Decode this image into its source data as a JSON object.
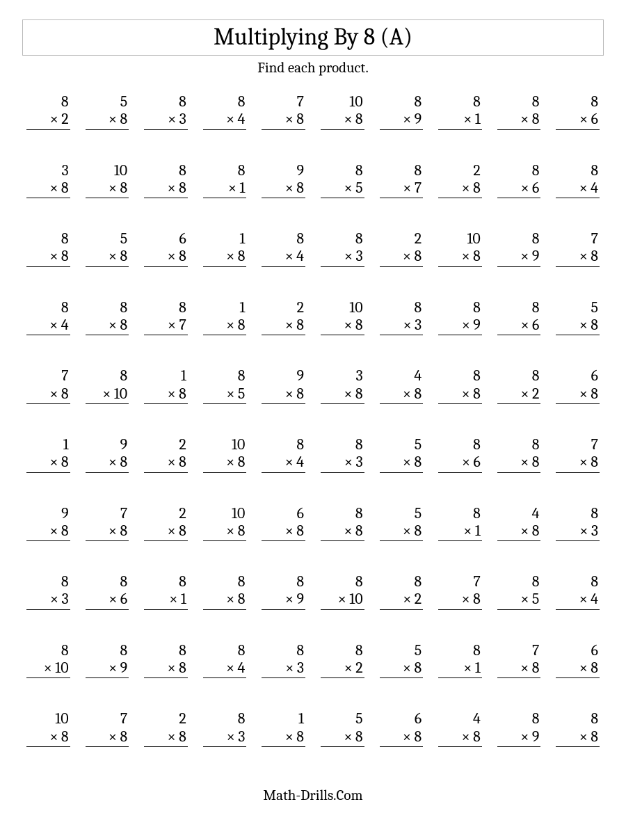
{
  "title": "Multiplying By 8 (A)",
  "subtitle": "Find each product.",
  "footer": "Math-Drills.Com",
  "op_symbol": "×",
  "problems": [
    {
      "a": 8,
      "b": 2
    },
    {
      "a": 5,
      "b": 8
    },
    {
      "a": 8,
      "b": 3
    },
    {
      "a": 8,
      "b": 4
    },
    {
      "a": 7,
      "b": 8
    },
    {
      "a": 10,
      "b": 8
    },
    {
      "a": 8,
      "b": 9
    },
    {
      "a": 8,
      "b": 1
    },
    {
      "a": 8,
      "b": 8
    },
    {
      "a": 8,
      "b": 6
    },
    {
      "a": 3,
      "b": 8
    },
    {
      "a": 10,
      "b": 8
    },
    {
      "a": 8,
      "b": 8
    },
    {
      "a": 8,
      "b": 1
    },
    {
      "a": 9,
      "b": 8
    },
    {
      "a": 8,
      "b": 5
    },
    {
      "a": 8,
      "b": 7
    },
    {
      "a": 2,
      "b": 8
    },
    {
      "a": 8,
      "b": 6
    },
    {
      "a": 8,
      "b": 4
    },
    {
      "a": 8,
      "b": 8
    },
    {
      "a": 5,
      "b": 8
    },
    {
      "a": 6,
      "b": 8
    },
    {
      "a": 1,
      "b": 8
    },
    {
      "a": 8,
      "b": 4
    },
    {
      "a": 8,
      "b": 3
    },
    {
      "a": 2,
      "b": 8
    },
    {
      "a": 10,
      "b": 8
    },
    {
      "a": 8,
      "b": 9
    },
    {
      "a": 7,
      "b": 8
    },
    {
      "a": 8,
      "b": 4
    },
    {
      "a": 8,
      "b": 8
    },
    {
      "a": 8,
      "b": 7
    },
    {
      "a": 1,
      "b": 8
    },
    {
      "a": 2,
      "b": 8
    },
    {
      "a": 10,
      "b": 8
    },
    {
      "a": 8,
      "b": 3
    },
    {
      "a": 8,
      "b": 9
    },
    {
      "a": 8,
      "b": 6
    },
    {
      "a": 5,
      "b": 8
    },
    {
      "a": 7,
      "b": 8
    },
    {
      "a": 8,
      "b": 10
    },
    {
      "a": 1,
      "b": 8
    },
    {
      "a": 8,
      "b": 5
    },
    {
      "a": 9,
      "b": 8
    },
    {
      "a": 3,
      "b": 8
    },
    {
      "a": 4,
      "b": 8
    },
    {
      "a": 8,
      "b": 8
    },
    {
      "a": 8,
      "b": 2
    },
    {
      "a": 6,
      "b": 8
    },
    {
      "a": 1,
      "b": 8
    },
    {
      "a": 9,
      "b": 8
    },
    {
      "a": 2,
      "b": 8
    },
    {
      "a": 10,
      "b": 8
    },
    {
      "a": 8,
      "b": 4
    },
    {
      "a": 8,
      "b": 3
    },
    {
      "a": 5,
      "b": 8
    },
    {
      "a": 8,
      "b": 6
    },
    {
      "a": 8,
      "b": 8
    },
    {
      "a": 7,
      "b": 8
    },
    {
      "a": 9,
      "b": 8
    },
    {
      "a": 7,
      "b": 8
    },
    {
      "a": 2,
      "b": 8
    },
    {
      "a": 10,
      "b": 8
    },
    {
      "a": 6,
      "b": 8
    },
    {
      "a": 8,
      "b": 8
    },
    {
      "a": 5,
      "b": 8
    },
    {
      "a": 8,
      "b": 1
    },
    {
      "a": 4,
      "b": 8
    },
    {
      "a": 8,
      "b": 3
    },
    {
      "a": 8,
      "b": 3
    },
    {
      "a": 8,
      "b": 6
    },
    {
      "a": 8,
      "b": 1
    },
    {
      "a": 8,
      "b": 8
    },
    {
      "a": 8,
      "b": 9
    },
    {
      "a": 8,
      "b": 10
    },
    {
      "a": 8,
      "b": 2
    },
    {
      "a": 7,
      "b": 8
    },
    {
      "a": 8,
      "b": 5
    },
    {
      "a": 8,
      "b": 4
    },
    {
      "a": 8,
      "b": 10
    },
    {
      "a": 8,
      "b": 9
    },
    {
      "a": 8,
      "b": 8
    },
    {
      "a": 8,
      "b": 4
    },
    {
      "a": 8,
      "b": 3
    },
    {
      "a": 8,
      "b": 2
    },
    {
      "a": 5,
      "b": 8
    },
    {
      "a": 8,
      "b": 1
    },
    {
      "a": 7,
      "b": 8
    },
    {
      "a": 6,
      "b": 8
    },
    {
      "a": 10,
      "b": 8
    },
    {
      "a": 7,
      "b": 8
    },
    {
      "a": 2,
      "b": 8
    },
    {
      "a": 8,
      "b": 3
    },
    {
      "a": 1,
      "b": 8
    },
    {
      "a": 5,
      "b": 8
    },
    {
      "a": 6,
      "b": 8
    },
    {
      "a": 4,
      "b": 8
    },
    {
      "a": 8,
      "b": 9
    },
    {
      "a": 8,
      "b": 8
    }
  ]
}
